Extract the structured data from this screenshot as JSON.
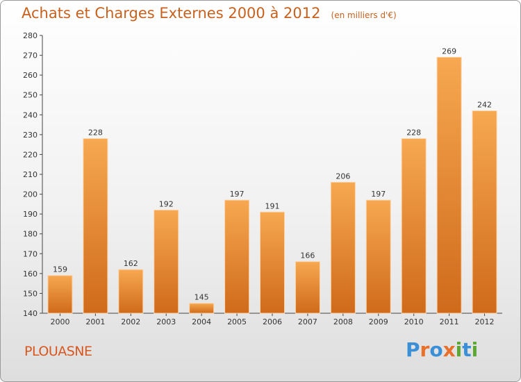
{
  "title": "Achats et Charges Externes 2000 à 2012",
  "subtitle": "(en milliers d'€)",
  "location": "PLOUASNE",
  "brand": {
    "name": "Proxiti",
    "letters": [
      "P",
      "r",
      "o",
      "x",
      "i",
      "t",
      "i"
    ],
    "letter_colors": [
      "#3a8fd6",
      "#e8702a",
      "#3a8fd6",
      "#e8702a",
      "#5aa832",
      "#3a8fd6",
      "#5aa832"
    ]
  },
  "colors": {
    "bar_light": "#f5a04f",
    "bar_dark": "#d06a1a",
    "bar_edge": "#fbd3a8",
    "title": "#c8601e"
  },
  "chart_data": {
    "type": "bar",
    "title": "Achats et Charges Externes 2000 à 2012",
    "subtitle": "(en milliers d'€)",
    "categories": [
      "2000",
      "2001",
      "2002",
      "2003",
      "2004",
      "2005",
      "2006",
      "2007",
      "2008",
      "2009",
      "2010",
      "2011",
      "2012"
    ],
    "values": [
      159,
      228,
      162,
      192,
      145,
      197,
      191,
      166,
      206,
      197,
      228,
      269,
      242
    ],
    "ylim": [
      140,
      280
    ],
    "yticks": [
      140,
      150,
      160,
      170,
      180,
      190,
      200,
      210,
      220,
      230,
      240,
      250,
      260,
      270,
      280
    ],
    "grid": false,
    "data_labels": true,
    "legend": "none"
  }
}
